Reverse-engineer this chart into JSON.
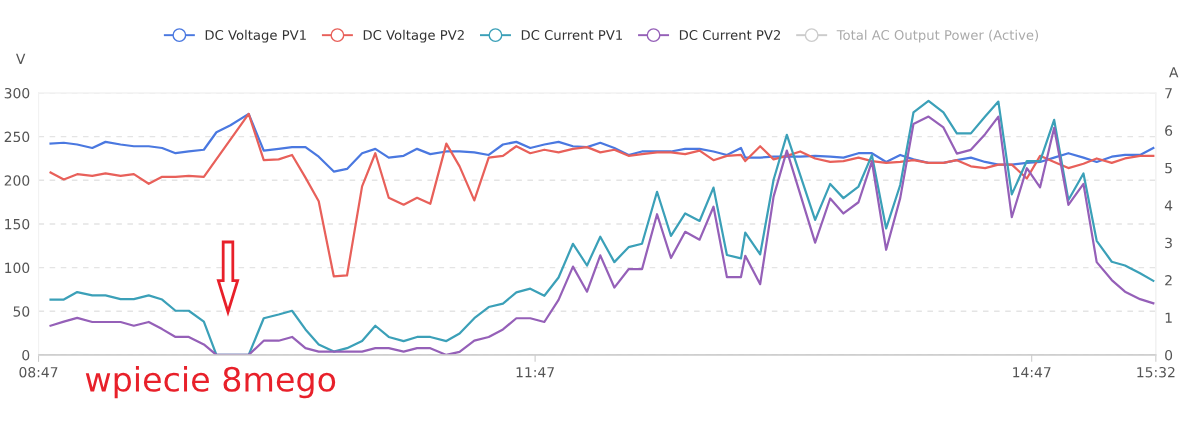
{
  "chart_data": {
    "type": "line",
    "ylabel": "V",
    "y2label": "A",
    "xlim": [
      8.7833,
      15.5333
    ],
    "xticks": [
      {
        "value": 8.7833,
        "label": "08:47"
      },
      {
        "value": 11.7833,
        "label": "11:47"
      },
      {
        "value": 14.7833,
        "label": "14:47"
      },
      {
        "value": 15.5333,
        "label": "15:32"
      }
    ],
    "ylim": [
      0,
      300
    ],
    "yticks": [
      0,
      50,
      100,
      150,
      200,
      250,
      300
    ],
    "y2lim": [
      0,
      7
    ],
    "y2ticks": [
      0,
      1,
      2,
      3,
      4,
      5,
      6,
      7
    ],
    "grid": "y",
    "legend": "top",
    "annotations": [
      "wpiecie 8mego"
    ],
    "series": [
      {
        "name": "DC Voltage PV1",
        "color": "#4a78e0",
        "x": [
          8.856,
          8.936,
          9.017,
          9.108,
          9.188,
          9.279,
          9.359,
          9.449,
          9.53,
          9.611,
          9.691,
          9.782,
          9.858,
          9.943,
          10.053,
          10.144,
          10.234,
          10.315,
          10.396,
          10.476,
          10.567,
          10.647,
          10.738,
          10.818,
          10.899,
          10.989,
          11.07,
          11.15,
          11.247,
          11.327,
          11.416,
          11.503,
          11.589,
          11.67,
          11.754,
          11.839,
          11.925,
          12.012,
          12.097,
          12.177,
          12.262,
          12.348,
          12.429,
          12.52,
          12.604,
          12.69,
          12.777,
          12.861,
          12.942,
          13.027,
          13.053,
          13.143,
          13.224,
          13.304,
          13.385,
          13.475,
          13.566,
          13.646,
          13.737,
          13.818,
          13.904,
          13.989,
          14.069,
          14.16,
          14.25,
          14.331,
          14.416,
          14.502,
          14.582,
          14.663,
          14.754,
          14.834,
          14.919,
          15.005,
          15.096,
          15.176,
          15.267,
          15.347,
          15.438,
          15.518
        ],
        "values": [
          242,
          243,
          241,
          237,
          244,
          241,
          239,
          239,
          237,
          231,
          233,
          235,
          255,
          263,
          276,
          234,
          236,
          238,
          238,
          227,
          210,
          213,
          231,
          236,
          226,
          228,
          236,
          230,
          233,
          233,
          232,
          229,
          241,
          244,
          237,
          241,
          244,
          239,
          238,
          243,
          237,
          229,
          233,
          233,
          233,
          236,
          236,
          233,
          229,
          237,
          226,
          226,
          227,
          227,
          227,
          228,
          227,
          226,
          231,
          231,
          221,
          229,
          224,
          220,
          220,
          223,
          226,
          221,
          218,
          218,
          220,
          221,
          226,
          231,
          226,
          221,
          227,
          229,
          229,
          237
        ]
      },
      {
        "name": "DC Voltage PV2",
        "color": "#e8605a",
        "x": [
          8.856,
          8.936,
          9.017,
          9.108,
          9.188,
          9.279,
          9.359,
          9.449,
          9.53,
          9.611,
          9.691,
          9.782,
          10.053,
          10.144,
          10.234,
          10.315,
          10.396,
          10.476,
          10.567,
          10.647,
          10.738,
          10.818,
          10.899,
          10.989,
          11.07,
          11.15,
          11.247,
          11.327,
          11.416,
          11.503,
          11.589,
          11.67,
          11.754,
          11.839,
          11.925,
          12.012,
          12.097,
          12.177,
          12.262,
          12.348,
          12.429,
          12.52,
          12.604,
          12.69,
          12.777,
          12.861,
          12.942,
          13.027,
          13.053,
          13.143,
          13.224,
          13.304,
          13.385,
          13.475,
          13.566,
          13.646,
          13.737,
          13.818,
          13.904,
          13.989,
          14.069,
          14.16,
          14.25,
          14.331,
          14.416,
          14.502,
          14.582,
          14.663,
          14.754,
          14.834,
          14.919,
          15.005,
          15.096,
          15.176,
          15.267,
          15.347,
          15.438,
          15.518
        ],
        "values": [
          209,
          201,
          207,
          205,
          208,
          205,
          207,
          196,
          204,
          204,
          205,
          204,
          276,
          223,
          224,
          229,
          203,
          176,
          90,
          91,
          193,
          231,
          180,
          172,
          180,
          173,
          242,
          216,
          177,
          226,
          228,
          239,
          231,
          235,
          232,
          236,
          238,
          232,
          235,
          228,
          230,
          232,
          232,
          230,
          234,
          223,
          228,
          229,
          222,
          239,
          224,
          228,
          233,
          225,
          221,
          222,
          226,
          222,
          220,
          221,
          223,
          220,
          220,
          223,
          216,
          214,
          218,
          218,
          202,
          228,
          221,
          214,
          219,
          225,
          220,
          225,
          228,
          228
        ]
      },
      {
        "name": "DC Current PV1",
        "color": "#3ba0b8",
        "axis": "y2",
        "x": [
          8.856,
          8.936,
          9.017,
          9.108,
          9.188,
          9.279,
          9.359,
          9.449,
          9.53,
          9.611,
          9.691,
          9.782,
          9.858,
          9.943,
          10.053,
          10.144,
          10.234,
          10.315,
          10.396,
          10.476,
          10.567,
          10.647,
          10.738,
          10.818,
          10.899,
          10.989,
          11.07,
          11.15,
          11.247,
          11.327,
          11.416,
          11.503,
          11.589,
          11.67,
          11.754,
          11.839,
          11.925,
          12.012,
          12.097,
          12.177,
          12.262,
          12.348,
          12.429,
          12.52,
          12.604,
          12.69,
          12.777,
          12.861,
          12.942,
          13.027,
          13.053,
          13.143,
          13.224,
          13.304,
          13.475,
          13.566,
          13.646,
          13.737,
          13.818,
          13.904,
          13.989,
          14.069,
          14.16,
          14.25,
          14.331,
          14.416,
          14.502,
          14.582,
          14.663,
          14.754,
          14.834,
          14.919,
          15.005,
          15.096,
          15.176,
          15.267,
          15.347,
          15.438,
          15.518
        ],
        "values": [
          1.48,
          1.48,
          1.68,
          1.59,
          1.59,
          1.49,
          1.49,
          1.59,
          1.48,
          1.18,
          1.18,
          0.89,
          0,
          0,
          0,
          0.98,
          1.08,
          1.18,
          0.68,
          0.28,
          0.09,
          0.18,
          0.37,
          0.78,
          0.48,
          0.37,
          0.48,
          0.48,
          0.37,
          0.57,
          0.98,
          1.28,
          1.37,
          1.67,
          1.77,
          1.58,
          2.07,
          2.97,
          2.39,
          3.16,
          2.48,
          2.88,
          2.97,
          4.36,
          3.18,
          3.78,
          3.58,
          4.47,
          2.67,
          2.58,
          3.27,
          2.69,
          4.68,
          5.88,
          3.61,
          4.57,
          4.19,
          4.5,
          5.34,
          3.38,
          4.54,
          6.48,
          6.79,
          6.48,
          5.92,
          5.92,
          6.37,
          6.77,
          4.29,
          5.18,
          5.18,
          6.28,
          4.14,
          4.85,
          3.05,
          2.49,
          2.39,
          2.18,
          1.98
        ]
      },
      {
        "name": "DC Current PV2",
        "color": "#9560b8",
        "axis": "y2",
        "x": [
          8.856,
          8.936,
          9.017,
          9.108,
          9.188,
          9.279,
          9.359,
          9.449,
          9.53,
          9.611,
          9.691,
          9.782,
          9.858,
          10.053,
          10.144,
          10.234,
          10.315,
          10.396,
          10.476,
          10.567,
          10.647,
          10.738,
          10.818,
          10.899,
          10.989,
          11.07,
          11.15,
          11.247,
          11.327,
          11.416,
          11.503,
          11.589,
          11.67,
          11.754,
          11.839,
          11.925,
          12.012,
          12.097,
          12.177,
          12.262,
          12.348,
          12.429,
          12.52,
          12.604,
          12.69,
          12.777,
          12.861,
          12.942,
          13.027,
          13.053,
          13.143,
          13.224,
          13.304,
          13.475,
          13.566,
          13.646,
          13.737,
          13.818,
          13.904,
          13.989,
          14.069,
          14.16,
          14.25,
          14.331,
          14.416,
          14.502,
          14.582,
          14.663,
          14.754,
          14.834,
          14.919,
          15.005,
          15.096,
          15.176,
          15.267,
          15.347,
          15.438,
          15.518
        ],
        "values": [
          0.78,
          0.89,
          0.99,
          0.88,
          0.88,
          0.88,
          0.78,
          0.88,
          0.69,
          0.48,
          0.48,
          0.28,
          0,
          0,
          0.38,
          0.38,
          0.48,
          0.18,
          0.09,
          0.09,
          0.09,
          0.09,
          0.18,
          0.18,
          0.09,
          0.18,
          0.18,
          0,
          0.08,
          0.38,
          0.48,
          0.68,
          0.98,
          0.98,
          0.88,
          1.47,
          2.36,
          1.69,
          2.66,
          1.8,
          2.29,
          2.29,
          3.76,
          2.59,
          3.29,
          3.08,
          3.96,
          2.08,
          2.08,
          2.65,
          1.89,
          4.23,
          5.46,
          3.0,
          4.18,
          3.78,
          4.08,
          5.17,
          2.81,
          4.19,
          6.17,
          6.37,
          6.08,
          5.38,
          5.48,
          5.9,
          6.37,
          3.68,
          4.99,
          4.48,
          6.07,
          4.01,
          4.57,
          2.48,
          2.0,
          1.69,
          1.49,
          1.38
        ]
      },
      {
        "name": "Total AC Output Power (Active)",
        "color": "#cccccc"
      }
    ]
  }
}
